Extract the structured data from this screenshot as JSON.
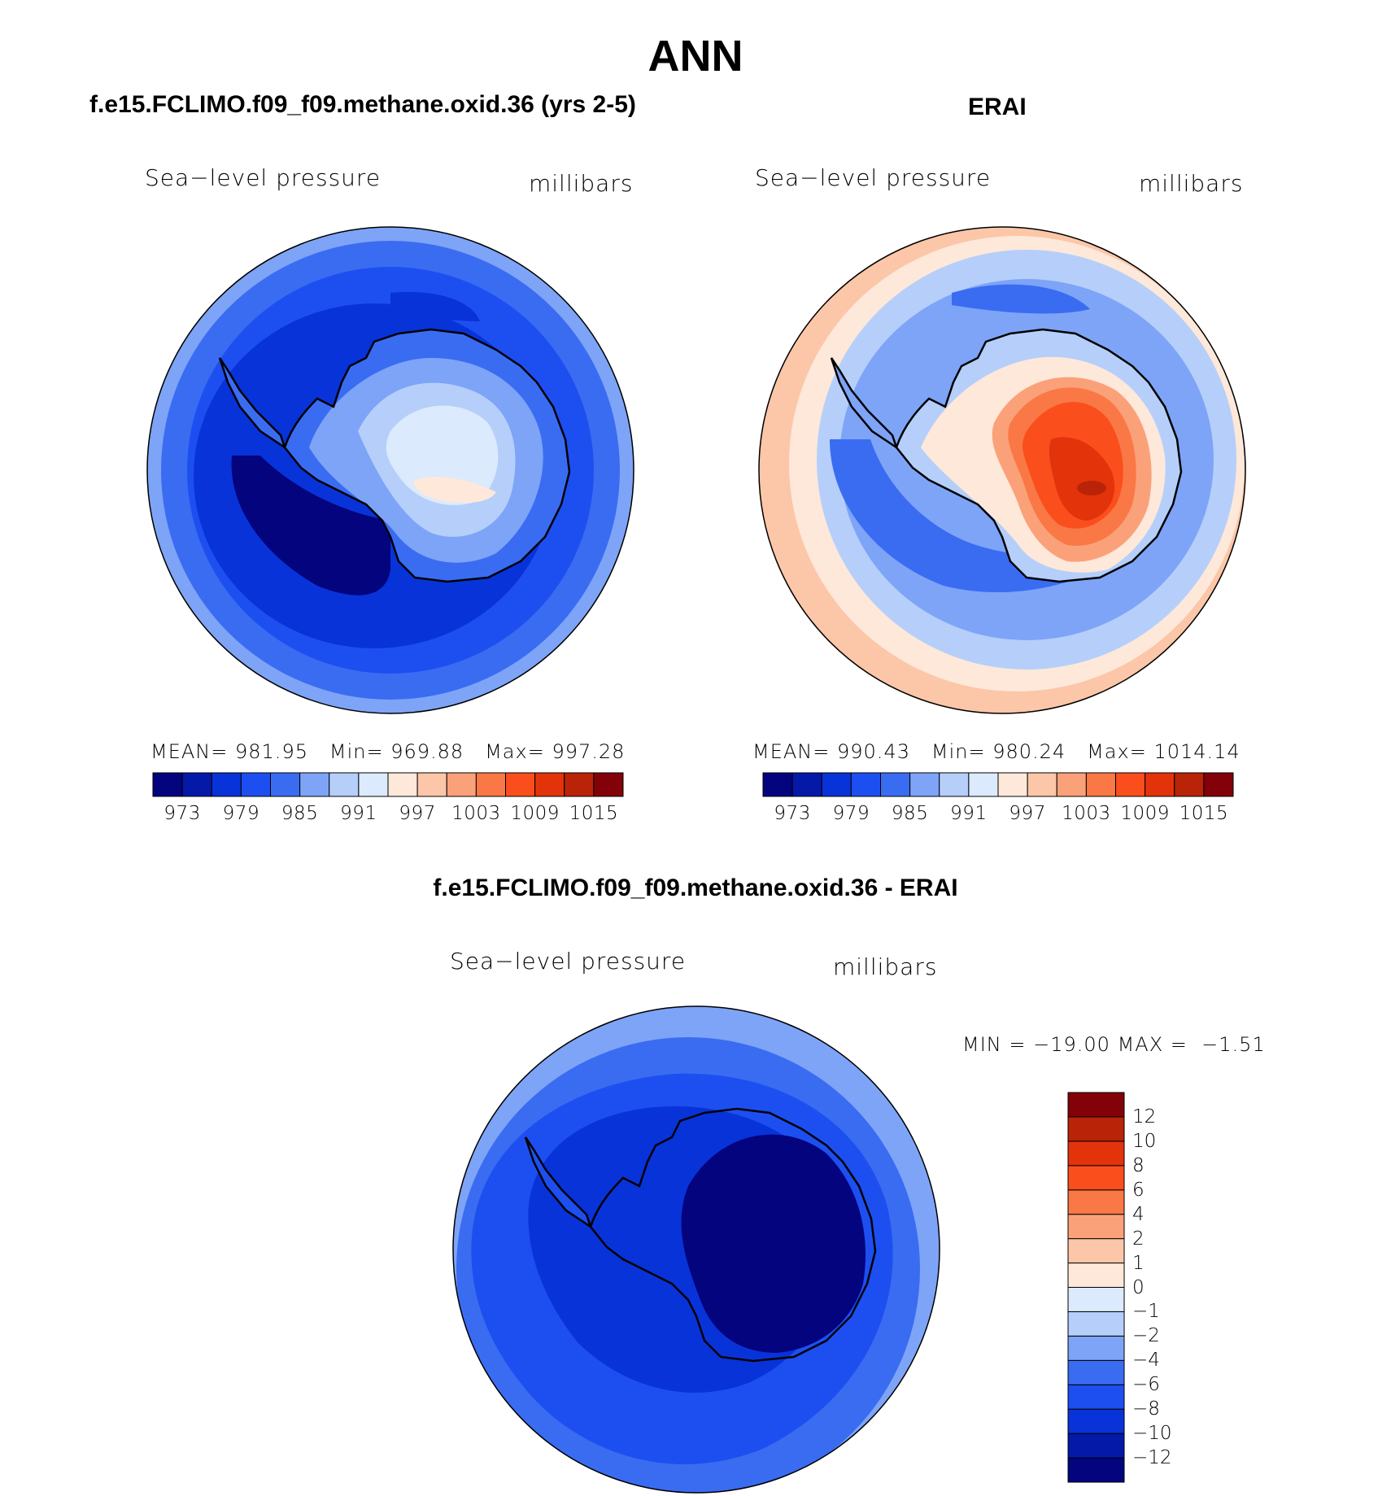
{
  "title": "ANN",
  "panels": [
    {
      "id": "model",
      "header": "f.e15.FCLIMO.f09_f09.methane.oxid.36 (yrs 2-5)",
      "variable": "Sea−level pressure",
      "units": "millibars",
      "stats": {
        "mean_label": "MEAN=",
        "mean": "981.95",
        "min_label": "Min=",
        "min": "969.88",
        "max_label": "Max=",
        "max": "997.28"
      }
    },
    {
      "id": "obs",
      "header": "ERAI",
      "variable": "Sea−level pressure",
      "units": "millibars",
      "stats": {
        "mean_label": "MEAN=",
        "mean": "990.43",
        "min_label": "Min=",
        "min": "980.24",
        "max_label": "Max=",
        "max": "1014.14"
      }
    },
    {
      "id": "diff",
      "header": "f.e15.FCLIMO.f09_f09.methane.oxid.36 - ERAI",
      "variable": "Sea−level pressure",
      "units": "millibars",
      "stats": {
        "min_label": "MIN =",
        "min": "−19.00",
        "max_label": "MAX =",
        "max": "−1.51"
      }
    }
  ],
  "colorbar_main": {
    "colors": [
      "#03047e",
      "#0419a8",
      "#0833d8",
      "#1d4ff0",
      "#3a6cf2",
      "#7ea4f7",
      "#b5cffa",
      "#dbeafc",
      "#fde8da",
      "#fcc6a8",
      "#fba17a",
      "#fa7845",
      "#fb4e1d",
      "#e3330b",
      "#b92408",
      "#830108"
    ],
    "labels": [
      "973",
      "979",
      "985",
      "991",
      "997",
      "1003",
      "1009",
      "1015"
    ]
  },
  "colorbar_diff": {
    "colors": [
      "#03047e",
      "#0419a8",
      "#0833d8",
      "#1d4ff0",
      "#3a6cf2",
      "#7ea4f7",
      "#b5cffa",
      "#dbeafc",
      "#fde8da",
      "#fcc6a8",
      "#fba17a",
      "#fa7845",
      "#fb4e1d",
      "#e3330b",
      "#b92408",
      "#830108"
    ],
    "labels": [
      "−12",
      "−10",
      "−8",
      "−6",
      "−4",
      "−2",
      "−1",
      "0",
      "1",
      "2",
      "4",
      "6",
      "8",
      "10",
      "12"
    ]
  },
  "map_colors": {
    "ring1": "#7ea4f7",
    "ring2": "#3a6cf2",
    "ring3": "#1d4ff0",
    "ring4": "#0833d8",
    "low": "#03047e",
    "ant1": "#3a6cf2",
    "ant2": "#7ea4f7",
    "ant3": "#b5cffa",
    "ant4": "#dbeafc",
    "ant5": "#fde8da",
    "obs_outer": "#fcc6a8",
    "obs_r1": "#fde8da",
    "obs_r2": "#b5cffa",
    "obs_r3": "#7ea4f7",
    "obs_r4": "#3a6cf2",
    "obs_hi1": "#fba17a",
    "obs_hi2": "#fa7845",
    "obs_hi3": "#fb4e1d",
    "obs_hi4": "#e3330b",
    "obs_hi5": "#b92408",
    "diff_edge": "#7ea4f7",
    "diff_mid": "#3a6cf2",
    "diff_in": "#1d4ff0",
    "diff_deep": "#0833d8",
    "diff_min": "#03047e"
  }
}
